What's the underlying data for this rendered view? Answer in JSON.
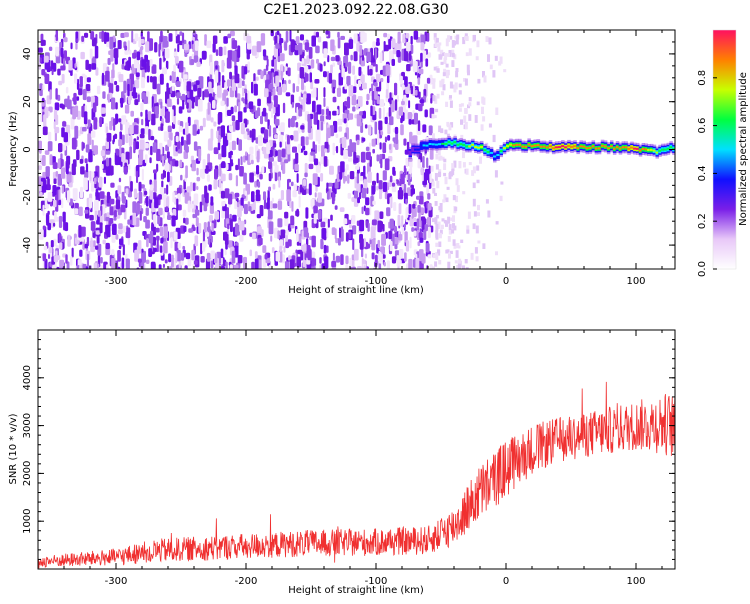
{
  "title": "C2E1.2023.092.22.08.G30",
  "chart_data": [
    {
      "type": "heatmap",
      "xlabel": "Height of straight line (km)",
      "ylabel": "Frequency (Hz)",
      "xlim": [
        -360,
        130
      ],
      "ylim": [
        -50,
        50
      ],
      "xticks": [
        -300,
        -200,
        -100,
        0,
        100
      ],
      "xtick_labels": [
        "-300",
        "-200",
        "-100",
        "0",
        "100"
      ],
      "yticks": [
        -40,
        -20,
        0,
        20,
        40
      ],
      "ytick_labels": [
        "-40",
        "-20",
        "0",
        "20",
        "40"
      ],
      "noise_region_x": [
        -360,
        -58
      ],
      "sparse_noise_region_x": [
        -58,
        0
      ],
      "signal_ridge": {
        "x_start": -75,
        "x_end": 130,
        "points": [
          {
            "x": -75,
            "freq": -1,
            "amp": 0.25
          },
          {
            "x": -62,
            "freq": 2,
            "amp": 0.5
          },
          {
            "x": -45,
            "freq": 3,
            "amp": 0.6
          },
          {
            "x": -20,
            "freq": 1,
            "amp": 0.75
          },
          {
            "x": -10,
            "freq": -3,
            "amp": 0.45
          },
          {
            "x": 0,
            "freq": 2,
            "amp": 0.8
          },
          {
            "x": 40,
            "freq": 1,
            "amp": 0.95
          },
          {
            "x": 80,
            "freq": 1,
            "amp": 0.85
          },
          {
            "x": 100,
            "freq": 0,
            "amp": 0.95
          },
          {
            "x": 115,
            "freq": -1,
            "amp": 0.7
          },
          {
            "x": 130,
            "freq": 1,
            "amp": 0.6
          }
        ]
      },
      "colorbar": {
        "label": "Normalized spectral amplitude",
        "range": [
          0,
          1
        ],
        "ticks": [
          0.0,
          0.2,
          0.4,
          0.6,
          0.8
        ],
        "tick_labels": [
          "0.0",
          "0.2",
          "0.4",
          "0.6",
          "0.8"
        ],
        "colors": [
          "#ffffff",
          "#e8c8f8",
          "#7a1fe8",
          "#1010ff",
          "#00e0ff",
          "#00ff40",
          "#c8ff00",
          "#ff8000",
          "#ff1060"
        ]
      },
      "grid": false
    },
    {
      "type": "line",
      "xlabel": "Height of straight line (km)",
      "ylabel": "SNR (10 * v/v)",
      "xlim": [
        -360,
        130
      ],
      "ylim": [
        0,
        5000
      ],
      "xticks": [
        -300,
        -200,
        -100,
        0,
        100
      ],
      "xtick_labels": [
        "-300",
        "-200",
        "-100",
        "0",
        "100"
      ],
      "yticks": [
        1000,
        2000,
        3000,
        4000
      ],
      "ytick_labels": [
        "1000",
        "2000",
        "3000",
        "4000"
      ],
      "series": [
        {
          "color": "#f03030",
          "x": [
            -360,
            -300,
            -270,
            -200,
            -150,
            -100,
            -60,
            -40,
            -20,
            0,
            20,
            40,
            60,
            80,
            100,
            120,
            130
          ],
          "y": [
            150,
            250,
            380,
            480,
            540,
            560,
            600,
            900,
            1600,
            2100,
            2500,
            2700,
            2800,
            2900,
            3000,
            3050,
            3000
          ],
          "spread": [
            120,
            180,
            250,
            270,
            280,
            290,
            300,
            420,
            600,
            620,
            520,
            480,
            480,
            500,
            520,
            650,
            700
          ]
        }
      ],
      "grid": false
    }
  ]
}
